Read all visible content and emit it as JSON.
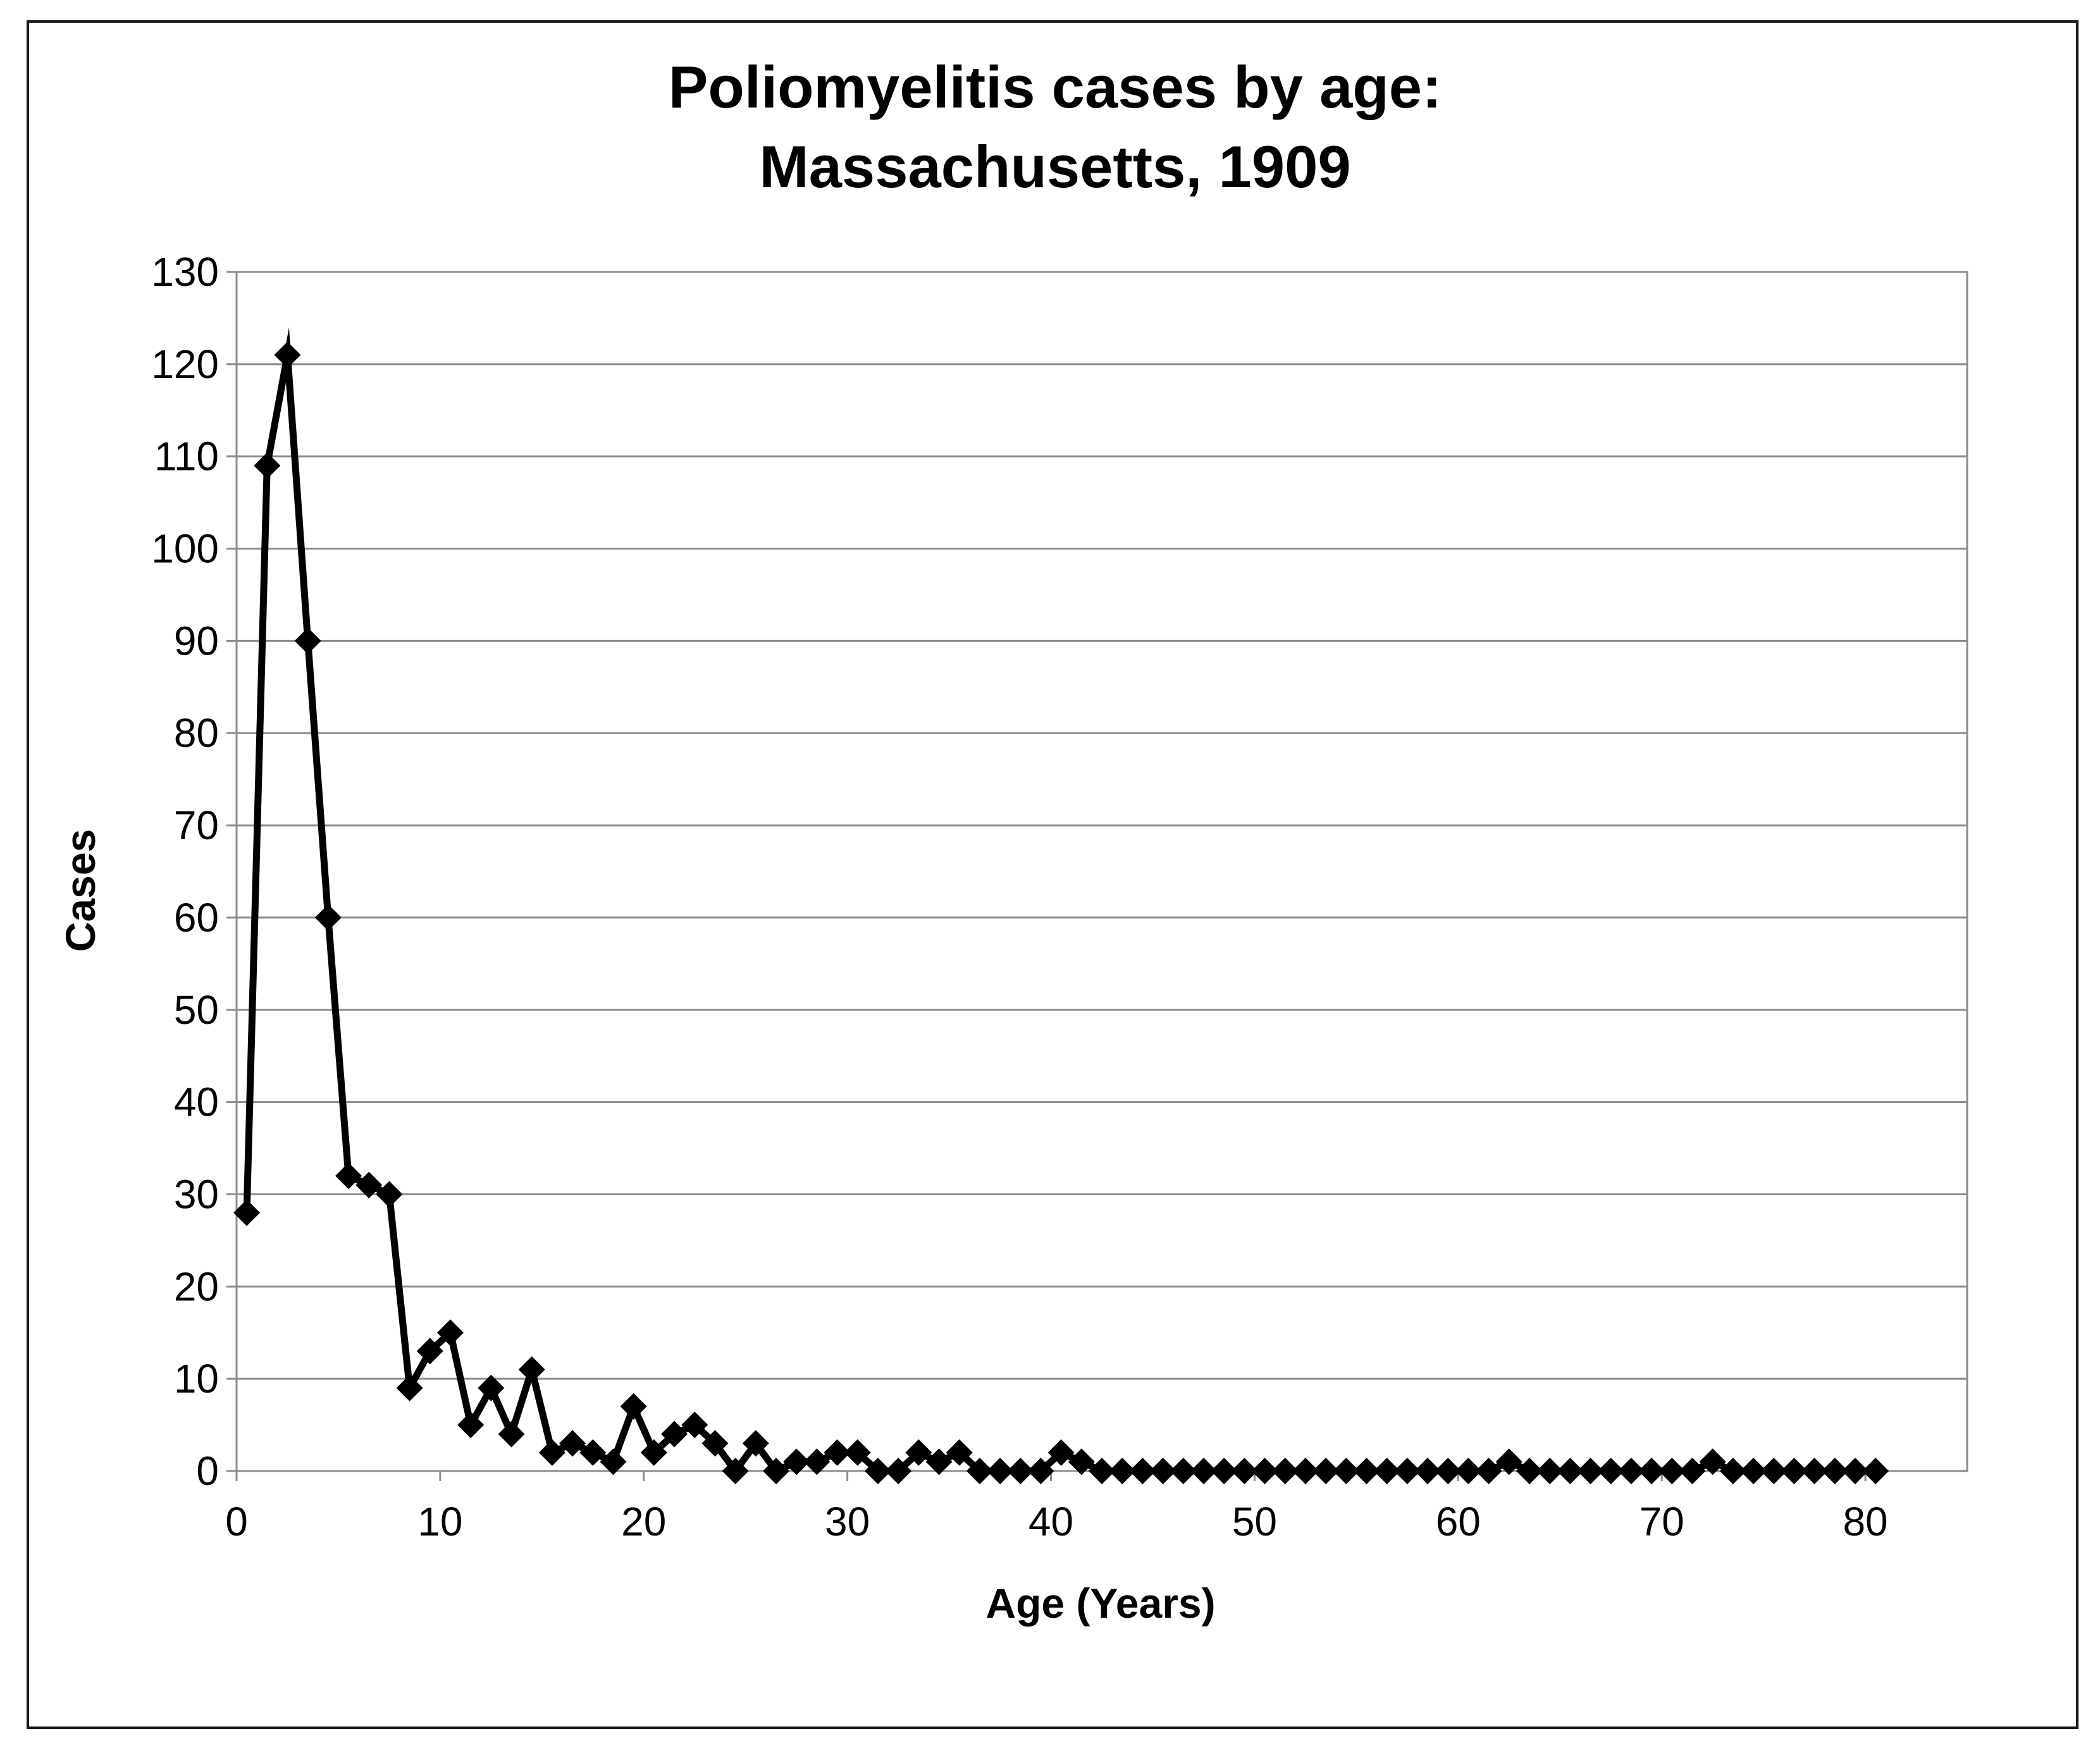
{
  "chart_data": {
    "type": "line",
    "title_lines": [
      "Poliomyelitis cases by age:",
      "Massachusetts, 1909"
    ],
    "xlabel": "Age (Years)",
    "ylabel": "Cases",
    "xlim": [
      0,
      85
    ],
    "ylim": [
      0,
      130
    ],
    "x_ticks": [
      0,
      10,
      20,
      30,
      40,
      50,
      60,
      70,
      80
    ],
    "x_tick_labels": [
      "0",
      "10",
      "20",
      "30",
      "40",
      "50",
      "60",
      "70",
      "80"
    ],
    "y_ticks": [
      0,
      10,
      20,
      30,
      40,
      50,
      60,
      70,
      80,
      90,
      100,
      110,
      120,
      130
    ],
    "y_tick_labels": [
      "0",
      "10",
      "20",
      "30",
      "40",
      "50",
      "60",
      "70",
      "80",
      "90",
      "100",
      "110",
      "120",
      "130"
    ],
    "grid": "horizontal",
    "legend": "none",
    "series": [
      {
        "marker": "diamond",
        "color": "#000000",
        "x": [
          0.5,
          1.5,
          2.5,
          3.5,
          4.5,
          5.5,
          6.5,
          7.5,
          8.5,
          9.5,
          10.5,
          11.5,
          12.5,
          13.5,
          14.5,
          15.5,
          16.5,
          17.5,
          18.5,
          19.5,
          20.5,
          21.5,
          22.5,
          23.5,
          24.5,
          25.5,
          26.5,
          27.5,
          28.5,
          29.5,
          30.5,
          31.5,
          32.5,
          33.5,
          34.5,
          35.5,
          36.5,
          37.5,
          38.5,
          39.5,
          40.5,
          41.5,
          42.5,
          43.5,
          44.5,
          45.5,
          46.5,
          47.5,
          48.5,
          49.5,
          50.5,
          51.5,
          52.5,
          53.5,
          54.5,
          55.5,
          56.5,
          57.5,
          58.5,
          59.5,
          60.5,
          61.5,
          62.5,
          63.5,
          64.5,
          65.5,
          66.5,
          67.5,
          68.5,
          69.5,
          70.5,
          71.5,
          72.5,
          73.5,
          74.5,
          75.5,
          76.5,
          77.5,
          78.5,
          79.5,
          80.5
        ],
        "y": [
          28,
          109,
          121,
          90,
          60,
          32,
          31,
          30,
          9,
          13,
          15,
          5,
          9,
          4,
          11,
          2,
          3,
          2,
          1,
          7,
          2,
          4,
          5,
          3,
          0,
          3,
          0,
          1,
          1,
          2,
          2,
          0,
          0,
          2,
          1,
          2,
          0,
          0,
          0,
          0,
          2,
          1,
          0,
          0,
          0,
          0,
          0,
          0,
          0,
          0,
          0,
          0,
          0,
          0,
          0,
          0,
          0,
          0,
          0,
          0,
          0,
          0,
          1,
          0,
          0,
          0,
          0,
          0,
          0,
          0,
          0,
          0,
          1,
          0,
          0,
          0,
          0,
          0,
          0,
          0,
          0
        ]
      }
    ]
  }
}
